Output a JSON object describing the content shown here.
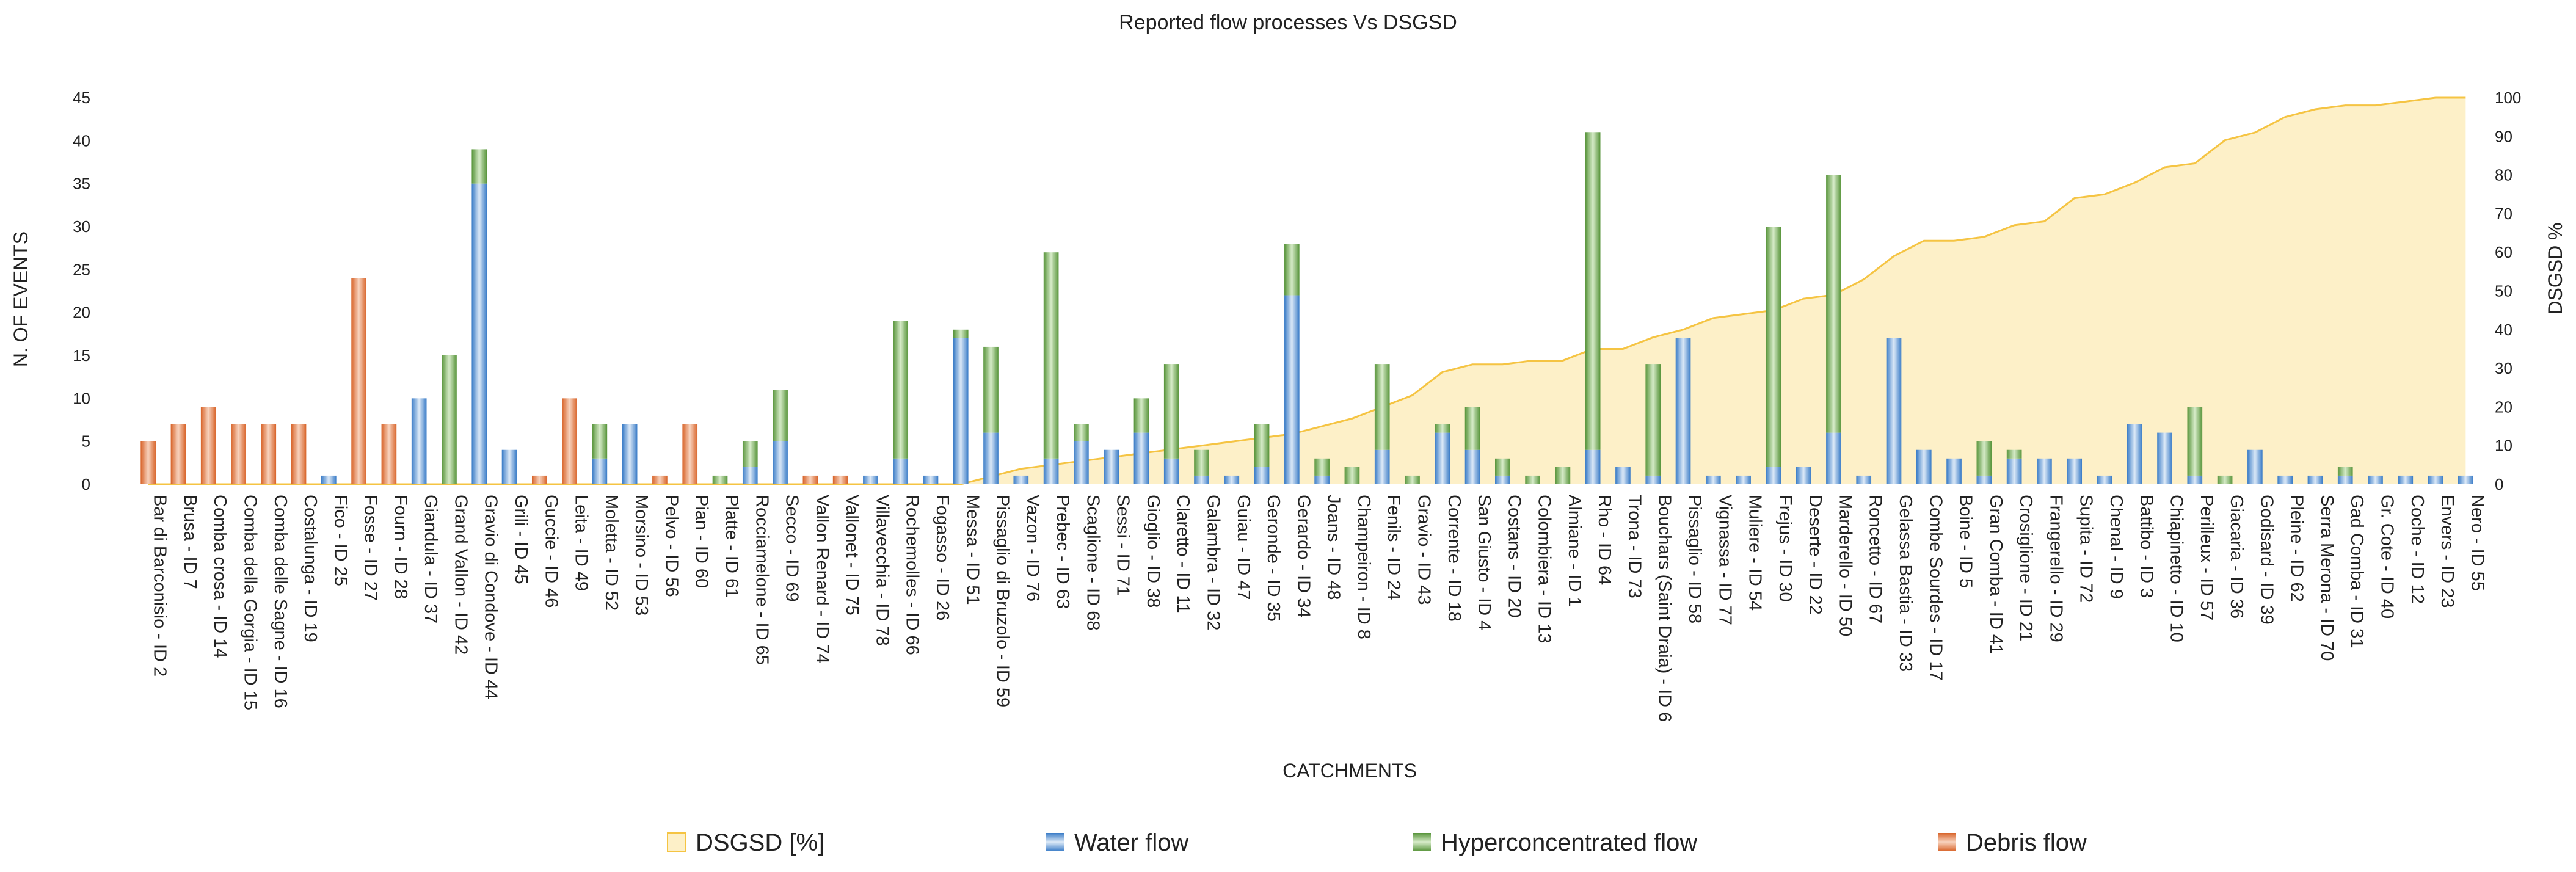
{
  "chart_data": {
    "type": "bar",
    "subtype": "stacked bar with secondary-axis area",
    "title": "Reported flow processes Vs DSGSD",
    "xlabel": "CATCHMENTS",
    "ylabel": "N. OF EVENTS",
    "y2label": "DSGSD %",
    "ylim": [
      0,
      45
    ],
    "y2lim": [
      0,
      100
    ],
    "yticks": [
      "0",
      "5",
      "10",
      "15",
      "20",
      "25",
      "30",
      "35",
      "40",
      "45"
    ],
    "y2ticks": [
      "0",
      "10",
      "20",
      "30",
      "40",
      "50",
      "60",
      "70",
      "80",
      "90",
      "100"
    ],
    "grid": false,
    "legend_position": "bottom",
    "colors": {
      "water": "#3a7cc7",
      "water_light": "#dce9f7",
      "hyper": "#57943a",
      "hyper_light": "#d6ebc8",
      "debris": "#d8642a",
      "debris_light": "#f7d2bd",
      "dsgsd_fill": "#fdf0c8",
      "dsgsd_line": "#f5c443"
    },
    "categories": [
      "Bar di Barconisio - ID 2",
      "Brusa - ID 7",
      "Comba crosa - ID 14",
      "Comba della Gorgia - ID 15",
      "Comba delle Sagne - ID 16",
      "Costalunga - ID 19",
      "Fico - ID 25",
      "Fosse - ID 27",
      "Fourn - ID 28",
      "Giandula - ID 37",
      "Grand Vallon - ID 42",
      "Gravio di Condove - ID 44",
      "Grili - ID 45",
      "Guccie - ID 46",
      "Leita - ID 49",
      "Moletta - ID 52",
      "Morsino - ID 53",
      "Pelvo - ID 56",
      "Pian - ID 60",
      "Platte - ID 61",
      "Rocciamelone - ID 65",
      "Secco - ID 69",
      "Vallon Renard - ID 74",
      "Vallonet - ID 75",
      "Villavecchia - ID 78",
      "Rochemolles - ID 66",
      "Fogasso - ID 26",
      "Messa - ID 51",
      "Pissaglio di Bruzolo - ID 59",
      "Vazon - ID 76",
      "Prebec - ID 63",
      "Scaglione - ID 68",
      "Sessi - ID 71",
      "Gioglio - ID 38",
      "Claretto - ID 11",
      "Galambra - ID 32",
      "Guiau - ID 47",
      "Geronde - ID 35",
      "Gerardo - ID 34",
      "Joans - ID 48",
      "Champeiron - ID 8",
      "Fenils - ID 24",
      "Gravio - ID 43",
      "Corrente - ID 18",
      "San Giusto - ID 4",
      "Costans - ID 20",
      "Colombiera - ID 13",
      "Almiane - ID 1",
      "Rho - ID 64",
      "Trona - ID 73",
      "Bouchars (Saint Draia) - ID 6",
      "Pissaglio - ID 58",
      "Vignassa - ID 77",
      "Muliere - ID 54",
      "Frejus - ID 30",
      "Deserte - ID 22",
      "Marderello - ID 50",
      "Roncetto - ID 67",
      "Gelassa Bastia - ID 33",
      "Combe Sourdes - ID 17",
      "Boine - ID 5",
      "Gran Comba - ID 41",
      "Crosiglione - ID 21",
      "Frangerello - ID 29",
      "Supita - ID 72",
      "Chenal - ID 9",
      "Battibo - ID 3",
      "Chiapinetto - ID 10",
      "Perilleux - ID 57",
      "Giacaria - ID 36",
      "Godisard - ID 39",
      "Pleine - ID 62",
      "Serra Merona - ID 70",
      "Gad Comba - ID 31",
      "Gr. Cote - ID 40",
      "Coche - ID 12",
      "Envers - ID 23",
      "Nero - ID 55"
    ],
    "series": [
      {
        "name": "Water flow",
        "values": [
          0,
          0,
          0,
          0,
          0,
          0,
          1,
          0,
          0,
          10,
          0,
          35,
          4,
          0,
          0,
          3,
          7,
          0,
          0,
          0,
          2,
          5,
          0,
          0,
          1,
          3,
          1,
          17,
          6,
          1,
          3,
          5,
          4,
          6,
          3,
          1,
          1,
          2,
          22,
          1,
          0,
          4,
          0,
          6,
          4,
          1,
          0,
          0,
          4,
          2,
          1,
          17,
          1,
          1,
          2,
          2,
          6,
          1,
          17,
          4,
          3,
          1,
          3,
          3,
          3,
          1,
          7,
          6,
          1,
          0,
          4,
          1,
          1,
          1,
          1,
          1,
          1,
          1
        ]
      },
      {
        "name": "Hyperconcentrated flow",
        "values": [
          0,
          0,
          0,
          0,
          0,
          0,
          0,
          0,
          0,
          0,
          15,
          4,
          0,
          0,
          0,
          4,
          0,
          0,
          0,
          1,
          3,
          6,
          0,
          0,
          0,
          16,
          0,
          1,
          10,
          0,
          24,
          2,
          0,
          4,
          11,
          3,
          0,
          5,
          6,
          2,
          2,
          10,
          1,
          1,
          5,
          2,
          1,
          2,
          37,
          0,
          13,
          0,
          0,
          0,
          28,
          0,
          30,
          0,
          0,
          0,
          0,
          4,
          1,
          0,
          0,
          0,
          0,
          0,
          8,
          1,
          0,
          0,
          0,
          1,
          0,
          0,
          0,
          0
        ]
      },
      {
        "name": "Debris flow",
        "values": [
          5,
          7,
          9,
          7,
          7,
          7,
          0,
          24,
          7,
          0,
          0,
          0,
          0,
          1,
          10,
          0,
          0,
          1,
          7,
          0,
          0,
          0,
          1,
          1,
          0,
          0,
          0,
          0,
          0,
          0,
          0,
          0,
          0,
          0,
          0,
          0,
          0,
          0,
          0,
          0,
          0,
          0,
          0,
          0,
          0,
          0,
          0,
          0,
          0,
          0,
          0,
          0,
          0,
          0,
          0,
          0,
          0,
          0,
          0,
          0,
          0,
          0,
          0,
          0,
          0,
          0,
          0,
          0,
          0,
          0,
          0,
          0,
          0,
          0,
          0,
          0,
          0,
          0
        ]
      },
      {
        "name": "DSGSD [%]",
        "axis": "secondary",
        "values": [
          0,
          0,
          0,
          0,
          0,
          0,
          0,
          0,
          0,
          0,
          0,
          0,
          0,
          0,
          0,
          0,
          0,
          0,
          0,
          0,
          0,
          0,
          0,
          0,
          0,
          0,
          0,
          0,
          2,
          4,
          5,
          6,
          7,
          8,
          9,
          10,
          11,
          12,
          13,
          15,
          17,
          20,
          23,
          29,
          31,
          31,
          32,
          32,
          35,
          35,
          38,
          40,
          43,
          44,
          45,
          48,
          49,
          53,
          59,
          63,
          63,
          64,
          67,
          68,
          74,
          75,
          78,
          82,
          83,
          89,
          91,
          95,
          97,
          98,
          98,
          99,
          100,
          100
        ]
      }
    ],
    "legend": [
      "DSGSD [%]",
      "Water flow",
      "Hyperconcentrated flow",
      "Debris flow"
    ]
  }
}
